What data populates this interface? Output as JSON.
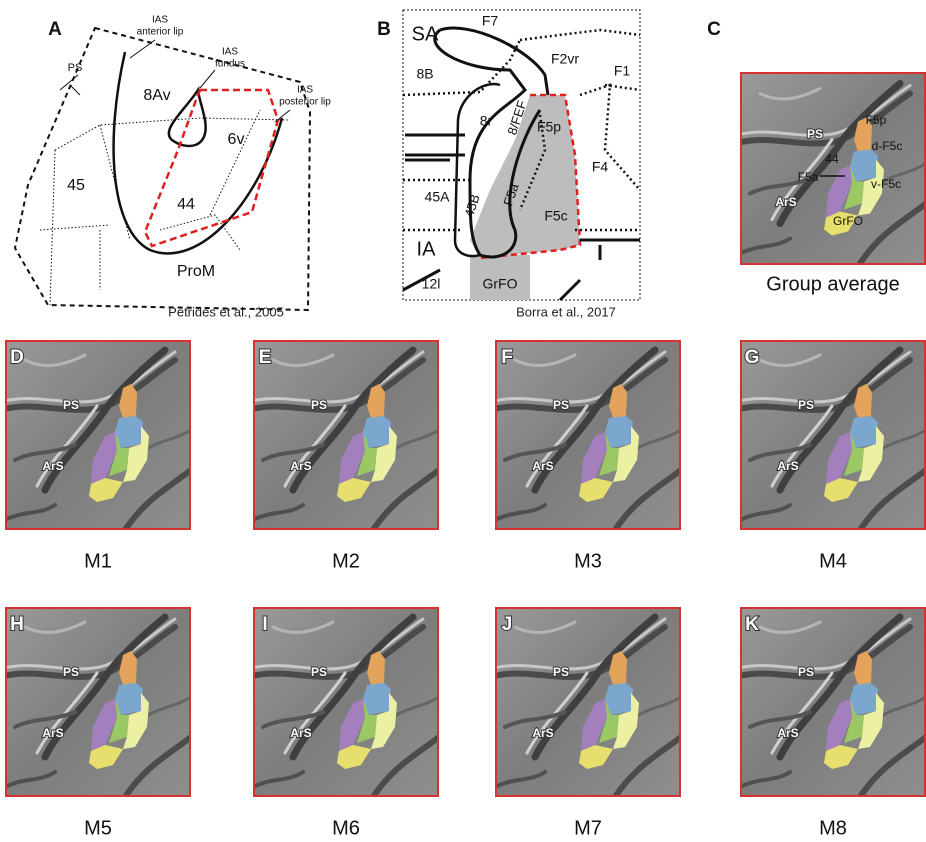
{
  "panel_a": {
    "label": "A",
    "callouts": [
      [
        "IAS",
        "anterior lip"
      ],
      [
        "IAS",
        "fundus"
      ],
      [
        "IAS",
        "posterior lip"
      ]
    ],
    "areas": [
      "PS",
      "8Av",
      "6v",
      "45",
      "44",
      "ProM"
    ],
    "citation": "Petrides et al., 2005"
  },
  "panel_b": {
    "label": "B",
    "areas": [
      "SA",
      "F7",
      "F2vr",
      "F1",
      "8B",
      "8r",
      "8/FEF",
      "F5p",
      "F4",
      "45A",
      "45B",
      "F5a",
      "F5c",
      "IA",
      "12l",
      "GrFO"
    ],
    "citation": "Borra et al., 2017"
  },
  "panel_c": {
    "label": "C",
    "labels": [
      "PS",
      "F5p",
      "d-F5c",
      "44",
      "F5a",
      "v-F5c",
      "ArS",
      "GrFO"
    ],
    "caption": "Group average"
  },
  "subjects": [
    {
      "label": "D",
      "caption": "M1",
      "sulci": [
        "PS",
        "ArS"
      ]
    },
    {
      "label": "E",
      "caption": "M2",
      "sulci": [
        "PS",
        "ArS"
      ]
    },
    {
      "label": "F",
      "caption": "M3",
      "sulci": [
        "PS",
        "ArS"
      ]
    },
    {
      "label": "G",
      "caption": "M4",
      "sulci": [
        "PS",
        "ArS"
      ]
    },
    {
      "label": "H",
      "caption": "M5",
      "sulci": [
        "PS",
        "ArS"
      ]
    },
    {
      "label": "I",
      "caption": "M6",
      "sulci": [
        "PS",
        "ArS"
      ]
    },
    {
      "label": "J",
      "caption": "M7",
      "sulci": [
        "PS",
        "ArS"
      ]
    },
    {
      "label": "K",
      "caption": "M8",
      "sulci": [
        "PS",
        "ArS"
      ]
    }
  ]
}
